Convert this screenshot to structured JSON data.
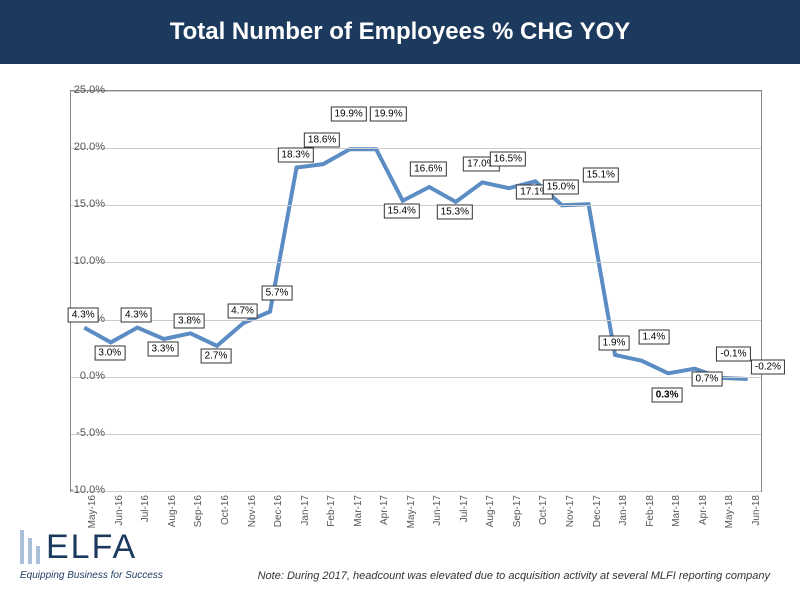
{
  "title": "Total Number of Employees % CHG YOY",
  "note": "Note: During 2017, headcount was elevated due to acquisition activity at several MLFI reporting company",
  "logo": {
    "name": "ELFA",
    "tagline": "Equipping Business for Success"
  },
  "chart": {
    "type": "line",
    "line_color": "#5b8cc4",
    "line_width": 4,
    "background_color": "#ffffff",
    "grid_color": "#cccccc",
    "border_color": "#888888",
    "label_box_border": "#333333",
    "ylim": [
      -10,
      25
    ],
    "ytick_step": 5,
    "yticks": [
      -10,
      -5,
      0,
      5,
      10,
      15,
      20,
      25
    ],
    "ytick_labels": [
      "-10.0%",
      "-5.0%",
      "0.0%",
      "5.0%",
      "10.0%",
      "15.0%",
      "20.0%",
      "25.0%"
    ],
    "label_fontsize": 10,
    "categories": [
      "May-16",
      "Jun-16",
      "Jul-16",
      "Aug-16",
      "Sep-16",
      "Oct-16",
      "Nov-16",
      "Dec-16",
      "Jan-17",
      "Feb-17",
      "Mar-17",
      "Apr-17",
      "May-17",
      "Jun-17",
      "Jul-17",
      "Aug-17",
      "Sep-17",
      "Oct-17",
      "Nov-17",
      "Dec-17",
      "Jan-18",
      "Feb-18",
      "Mar-18",
      "Apr-18",
      "May-18",
      "Jun-18"
    ],
    "values": [
      4.3,
      3.0,
      4.3,
      3.3,
      3.8,
      2.7,
      4.7,
      5.7,
      18.3,
      18.6,
      19.9,
      19.9,
      15.4,
      16.6,
      15.3,
      17.0,
      16.5,
      17.1,
      15.0,
      15.1,
      1.9,
      1.4,
      0.3,
      0.7,
      -0.1,
      -0.2
    ],
    "value_labels": [
      "4.3%",
      "3.0%",
      "4.3%",
      "3.3%",
      "3.8%",
      "2.7%",
      "4.7%",
      "5.7%",
      "18.3%",
      "18.6%",
      "19.9%",
      "19.9%",
      "15.4%",
      "16.6%",
      "15.3%",
      "17.0%",
      "16.5%",
      "17.1%",
      "15.0%",
      "15.1%",
      "1.9%",
      "1.4%",
      "0.3%",
      "0.7%",
      "-0.1%",
      "-0.2%"
    ],
    "label_y_offsets": [
      1,
      -1,
      1,
      -1,
      1,
      -1,
      1,
      1.5,
      1,
      2,
      3,
      3,
      -1,
      1.5,
      -1,
      1.5,
      2.5,
      -1,
      1.5,
      2.5,
      1,
      2,
      -2,
      -1,
      2,
      1
    ],
    "label_x_offsets": [
      0,
      0,
      0,
      0,
      0,
      0,
      0,
      0.3,
      0,
      0,
      0,
      0.5,
      0,
      0,
      0,
      0,
      0,
      0,
      0,
      0.5,
      0,
      0.5,
      0,
      0.5,
      0.5,
      0.8
    ]
  }
}
